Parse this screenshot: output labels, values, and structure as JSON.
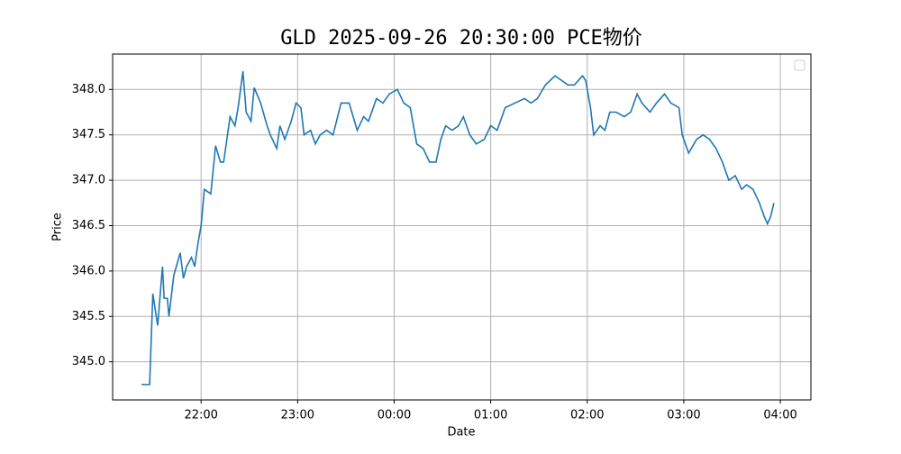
{
  "chart_data": {
    "type": "line",
    "title": "GLD 2025-09-26 20:30:00 PCE物价",
    "x_label": "Date",
    "y_label": "Price",
    "x": [
      "21:23",
      "21:28",
      "21:30",
      "21:33",
      "21:36",
      "21:37",
      "21:39",
      "21:40",
      "21:43",
      "21:47",
      "21:49",
      "21:51",
      "21:54",
      "21:56",
      "21:58",
      "22:00",
      "22:02",
      "22:06",
      "22:09",
      "22:12",
      "22:14",
      "22:18",
      "22:21",
      "22:23",
      "22:26",
      "22:28",
      "22:31",
      "22:33",
      "22:37",
      "22:41",
      "22:43",
      "22:47",
      "22:49",
      "22:52",
      "22:56",
      "22:59",
      "23:02",
      "23:04",
      "23:08",
      "23:11",
      "23:14",
      "23:18",
      "23:22",
      "23:27",
      "23:32",
      "23:37",
      "23:41",
      "23:44",
      "23:49",
      "23:53",
      "23:57",
      "00:02",
      "00:06",
      "00:10",
      "00:14",
      "00:18",
      "00:22",
      "00:26",
      "00:29",
      "00:32",
      "00:36",
      "00:40",
      "00:43",
      "00:47",
      "00:51",
      "00:56",
      "01:00",
      "01:04",
      "01:09",
      "01:15",
      "01:21",
      "01:25",
      "01:29",
      "01:34",
      "01:40",
      "01:44",
      "01:48",
      "01:52",
      "01:57",
      "01:59",
      "02:02",
      "02:04",
      "02:08",
      "02:11",
      "02:14",
      "02:18",
      "02:23",
      "02:27",
      "02:31",
      "02:34",
      "02:39",
      "02:43",
      "02:48",
      "02:52",
      "02:57",
      "02:59",
      "03:03",
      "03:08",
      "03:12",
      "03:16",
      "03:20",
      "03:24",
      "03:28",
      "03:32",
      "03:36",
      "03:39",
      "03:43",
      "03:47",
      "03:50",
      "03:52",
      "03:54",
      "03:56"
    ],
    "series": [
      {
        "color": "#1f77b4",
        "values": [
          344.75,
          344.75,
          345.75,
          345.4,
          346.05,
          345.7,
          345.7,
          345.5,
          345.95,
          346.2,
          345.92,
          346.05,
          346.15,
          346.05,
          346.3,
          346.5,
          346.9,
          346.85,
          347.38,
          347.2,
          347.2,
          347.7,
          347.6,
          347.8,
          348.2,
          347.75,
          347.65,
          348.02,
          347.85,
          347.6,
          347.5,
          347.35,
          347.6,
          347.45,
          347.65,
          347.85,
          347.8,
          347.5,
          347.55,
          347.4,
          347.5,
          347.55,
          347.5,
          347.85,
          347.85,
          347.55,
          347.7,
          347.65,
          347.9,
          347.85,
          347.95,
          348.0,
          347.85,
          347.8,
          347.4,
          347.35,
          347.2,
          347.2,
          347.45,
          347.6,
          347.55,
          347.6,
          347.7,
          347.5,
          347.4,
          347.45,
          347.6,
          347.55,
          347.8,
          347.85,
          347.9,
          347.85,
          347.9,
          348.05,
          348.15,
          348.1,
          348.05,
          348.05,
          348.15,
          348.1,
          347.8,
          347.5,
          347.6,
          347.55,
          347.75,
          347.75,
          347.7,
          347.75,
          347.95,
          347.85,
          347.75,
          347.85,
          347.95,
          347.85,
          347.8,
          347.5,
          347.3,
          347.45,
          347.5,
          347.45,
          347.35,
          347.2,
          347.0,
          347.05,
          346.9,
          346.95,
          346.9,
          346.75,
          346.6,
          346.52,
          346.6,
          346.75
        ]
      }
    ],
    "xlim": [
      "21:05",
      "04:19"
    ],
    "xticks": [
      "22:00",
      "23:00",
      "00:00",
      "01:00",
      "02:00",
      "03:00",
      "04:00"
    ],
    "ylim": [
      344.58,
      348.39
    ],
    "yticks": [
      {
        "value": 345,
        "label": "345.0"
      },
      {
        "value": 345.5,
        "label": "345.5"
      },
      {
        "value": 346,
        "label": "346.0"
      },
      {
        "value": 346.5,
        "label": "346.5"
      },
      {
        "value": 347,
        "label": "347.0"
      },
      {
        "value": 347.5,
        "label": "347.5"
      },
      {
        "value": 348,
        "label": "348.0"
      }
    ],
    "grid": true
  }
}
